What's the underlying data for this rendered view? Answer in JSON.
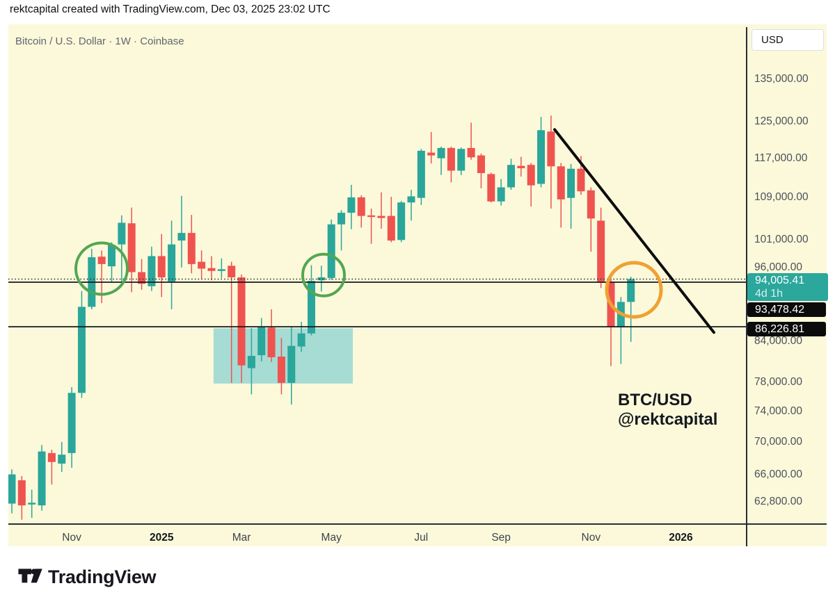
{
  "credit_bar": {
    "text": "rektcapital created with TradingView.com, Dec 03, 2025 23:02 UTC"
  },
  "chart_header": {
    "symbol_title": "Bitcoin / U.S. Dollar · 1W · Coinbase"
  },
  "watermark": {
    "line1": "BTC/USD",
    "line2": "@rektcapital"
  },
  "footer": {
    "brand": "TradingView"
  },
  "price_axis": {
    "currency_label": "USD",
    "current_price_badge": {
      "price": "94,005.41",
      "countdown": "4d 1h",
      "color": "#2BA79C"
    },
    "level_badges": [
      {
        "text": "93,478.42"
      },
      {
        "text": "86,226.81"
      }
    ],
    "ticks": [
      {
        "value": 135000,
        "label": "135,000.00"
      },
      {
        "value": 125000,
        "label": "125,000.00"
      },
      {
        "value": 117000,
        "label": "117,000.00"
      },
      {
        "value": 109000,
        "label": "109,000.00"
      },
      {
        "value": 101000,
        "label": "101,000.00"
      },
      {
        "value": 96000,
        "label": "96,000.00"
      },
      {
        "value": 84000,
        "label": "84,000.00"
      },
      {
        "value": 78000,
        "label": "78,000.00"
      },
      {
        "value": 74000,
        "label": "74,000.00"
      },
      {
        "value": 70000,
        "label": "70,000.00"
      },
      {
        "value": 66000,
        "label": "66,000.00"
      },
      {
        "value": 62800,
        "label": "62,800.00"
      }
    ]
  },
  "time_axis": {
    "ticks": [
      {
        "label": "Nov",
        "index": 6,
        "bold": false
      },
      {
        "label": "2025",
        "index": 15,
        "bold": true
      },
      {
        "label": "Mar",
        "index": 23,
        "bold": false
      },
      {
        "label": "May",
        "index": 32,
        "bold": false
      },
      {
        "label": "Jul",
        "index": 41,
        "bold": false
      },
      {
        "label": "Sep",
        "index": 49,
        "bold": false
      },
      {
        "label": "Nov",
        "index": 58,
        "bold": false
      },
      {
        "label": "2026",
        "index": 67,
        "bold": true
      }
    ]
  },
  "chart_data": {
    "type": "candlestick",
    "title": "Bitcoin / U.S. Dollar · 1W · Coinbase",
    "symbol": "BTC/USD",
    "timeframe": "1W",
    "exchange": "Coinbase",
    "scale": "log",
    "background": "#FBF9DA",
    "up_color": "#2AA69B",
    "down_color": "#EF5350",
    "current_price": 94005.41,
    "bar_countdown": "4d 1h",
    "candles": [
      [
        62600,
        66600,
        61500,
        66000
      ],
      [
        65300,
        65800,
        60800,
        62400
      ],
      [
        62500,
        64200,
        61000,
        62700
      ],
      [
        62400,
        69600,
        61800,
        68800
      ],
      [
        68600,
        69000,
        64800,
        67500
      ],
      [
        67300,
        70000,
        66300,
        68400
      ],
      [
        68600,
        77300,
        66800,
        76500
      ],
      [
        76500,
        92000,
        75800,
        89400
      ],
      [
        89400,
        99300,
        89000,
        97800
      ],
      [
        97900,
        99000,
        90000,
        96600
      ],
      [
        96200,
        100500,
        93500,
        100000
      ],
      [
        100100,
        105500,
        93600,
        104100
      ],
      [
        104000,
        107000,
        91800,
        95200
      ],
      [
        95200,
        97500,
        92200,
        93200
      ],
      [
        92800,
        99700,
        92000,
        98000
      ],
      [
        98000,
        102000,
        91000,
        94300
      ],
      [
        93600,
        104500,
        89000,
        100100
      ],
      [
        100800,
        109300,
        96000,
        102200
      ],
      [
        102200,
        105600,
        95000,
        96600
      ],
      [
        97000,
        99000,
        94000,
        95800
      ],
      [
        95900,
        98000,
        93800,
        95400
      ],
      [
        95400,
        97600,
        94200,
        95700
      ],
      [
        96300,
        97000,
        77900,
        94300
      ],
      [
        94300,
        94800,
        77900,
        80400
      ],
      [
        80000,
        86000,
        76300,
        81800
      ],
      [
        81900,
        87600,
        81000,
        86200
      ],
      [
        86100,
        89000,
        80900,
        81600
      ],
      [
        81700,
        84500,
        76300,
        77900
      ],
      [
        77900,
        86200,
        74900,
        83300
      ],
      [
        83200,
        87000,
        82400,
        85200
      ],
      [
        85200,
        96400,
        84900,
        93700
      ],
      [
        93800,
        96300,
        91900,
        94300
      ],
      [
        94200,
        104700,
        93900,
        103800
      ],
      [
        103800,
        106500,
        99000,
        106000
      ],
      [
        106000,
        111500,
        102900,
        109000
      ],
      [
        109000,
        109400,
        103200,
        105400
      ],
      [
        105500,
        106800,
        100200,
        105200
      ],
      [
        105400,
        110000,
        103000,
        105000
      ],
      [
        105400,
        109100,
        100500,
        100800
      ],
      [
        100900,
        108300,
        100500,
        108000
      ],
      [
        108000,
        110500,
        104500,
        109200
      ],
      [
        108900,
        119000,
        107500,
        118600
      ],
      [
        118200,
        122700,
        115900,
        117600
      ],
      [
        117000,
        119500,
        113500,
        119200
      ],
      [
        119200,
        119500,
        112000,
        114400
      ],
      [
        114400,
        119300,
        113500,
        119000
      ],
      [
        119200,
        124800,
        116700,
        117200
      ],
      [
        117600,
        118000,
        110800,
        113900
      ],
      [
        113700,
        114000,
        108000,
        108200
      ],
      [
        108200,
        112700,
        107400,
        111000
      ],
      [
        111000,
        116900,
        110500,
        115600
      ],
      [
        115400,
        117300,
        113200,
        114900
      ],
      [
        115600,
        116000,
        107200,
        111400
      ],
      [
        111700,
        126100,
        111000,
        123100
      ],
      [
        122800,
        126400,
        106800,
        115300
      ],
      [
        115300,
        116000,
        103200,
        108600
      ],
      [
        108900,
        115800,
        103000,
        114800
      ],
      [
        114800,
        117500,
        109500,
        110200
      ],
      [
        110400,
        111000,
        98800,
        104900
      ],
      [
        104500,
        107000,
        92500,
        93478.42
      ],
      [
        93478.42,
        94500,
        80300,
        86226.81
      ],
      [
        86300,
        91000,
        80600,
        90200
      ],
      [
        90200,
        94400,
        83900,
        94005.41
      ]
    ],
    "price_lines": [
      {
        "price": 94005.41,
        "style": "dotted",
        "color": "#30343B",
        "name": "current-price-line"
      },
      {
        "price": 93478.42,
        "style": "solid",
        "color": "#16181D",
        "name": "price-level-line-upper"
      },
      {
        "price": 86226.81,
        "style": "solid",
        "color": "#16181D",
        "name": "price-level-line-lower"
      }
    ],
    "trendline": {
      "from": {
        "index": 54.36,
        "price": 123250
      },
      "to": {
        "index": 70.31,
        "price": 85350
      },
      "color": "#0D0D0D",
      "width": 4,
      "name": "downtrend-line"
    },
    "box": {
      "from_index": 20.2,
      "to_index": 34.15,
      "top_price": 86000,
      "bottom_price": 77800,
      "color": "#A6DCD4",
      "name": "accumulation-box"
    },
    "circles": [
      {
        "index": 8.99,
        "price": 95800,
        "radius": 37,
        "color": "#53A653",
        "width": 4,
        "name": "green-circle-annotation-1"
      },
      {
        "index": 31.22,
        "price": 94700,
        "radius": 30,
        "color": "#53A653",
        "width": 4,
        "name": "green-circle-annotation-2"
      },
      {
        "index": 62.3,
        "price": 92200,
        "radius": 39,
        "color": "#F0A032",
        "width": 5,
        "name": "orange-circle-annotation"
      }
    ],
    "ylim": [
      60000,
      137000
    ],
    "legend_position": "none",
    "grid": false
  }
}
